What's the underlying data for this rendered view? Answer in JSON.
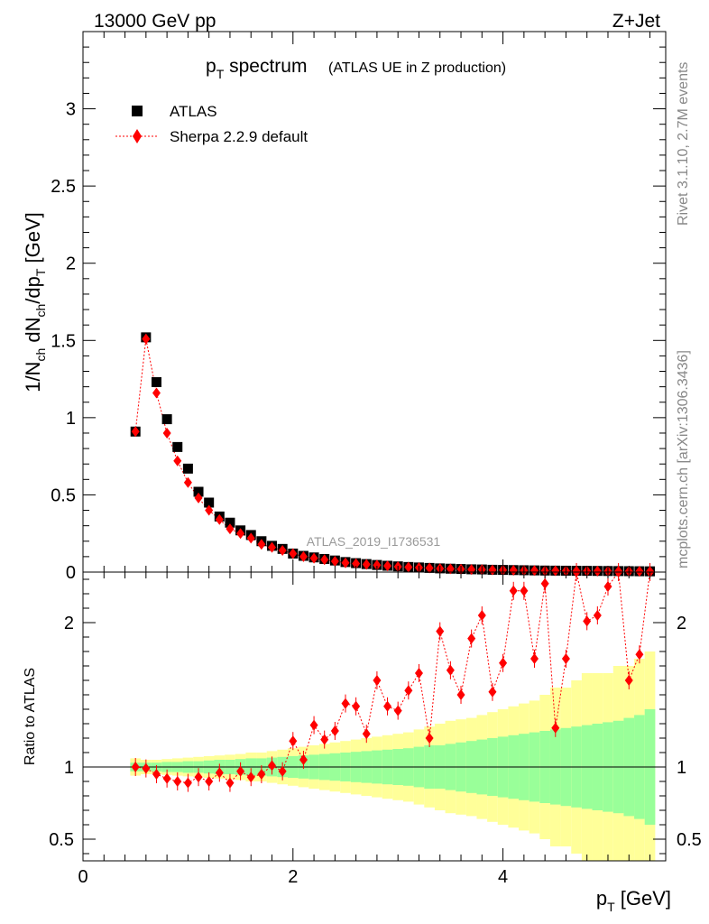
{
  "header": {
    "energy_label": "13000 GeV pp",
    "process_label": "Z+Jet"
  },
  "side_labels": {
    "rivet": "Rivet 3.1.10,  2.7M events",
    "mcplots": "mcplots.cern.ch [arXiv:1306.3436]"
  },
  "colors": {
    "data_marker": "#000000",
    "mc_line": "#ff0000",
    "band_inner": "#99ff99",
    "band_outer": "#ffff99"
  },
  "chart_data": [
    {
      "type": "scatter",
      "panel": "main",
      "title_main": "p",
      "title_sub": "T",
      "title_word": " spectrum",
      "title_suffix": "(ATLAS UE in Z production)",
      "watermark": "ATLAS_2019_I1736531",
      "xlabel": "p",
      "xlabel_sub": "T",
      "xlabel_unit": " [GeV]",
      "ylabel": "1/N_ch dN_ch/dp_T [GeV]",
      "xlim": [
        0,
        5.55
      ],
      "ylim": [
        0,
        3.5
      ],
      "grid": false,
      "legend_position": "top-left",
      "yticks": [
        {
          "v": 0,
          "label": "0"
        },
        {
          "v": 0.5,
          "label": "0.5"
        },
        {
          "v": 1,
          "label": "1"
        },
        {
          "v": 1.5,
          "label": "1.5"
        },
        {
          "v": 2,
          "label": "2"
        },
        {
          "v": 2.5,
          "label": "2.5"
        },
        {
          "v": 3,
          "label": "3"
        }
      ],
      "series": [
        {
          "name": "ATLAS",
          "marker": "square",
          "x": [
            0.5,
            0.6,
            0.7,
            0.8,
            0.9,
            1.0,
            1.1,
            1.2,
            1.3,
            1.4,
            1.5,
            1.6,
            1.7,
            1.8,
            1.9,
            2.0,
            2.1,
            2.2,
            2.3,
            2.4,
            2.5,
            2.6,
            2.7,
            2.8,
            2.9,
            3.0,
            3.1,
            3.2,
            3.3,
            3.4,
            3.5,
            3.6,
            3.7,
            3.8,
            3.9,
            4.0,
            4.1,
            4.2,
            4.3,
            4.4,
            4.5,
            4.6,
            4.7,
            4.8,
            4.9,
            5.0,
            5.1,
            5.2,
            5.3,
            5.4
          ],
          "y": [
            0.91,
            1.52,
            1.23,
            0.99,
            0.81,
            0.67,
            0.52,
            0.45,
            0.36,
            0.32,
            0.27,
            0.24,
            0.2,
            0.17,
            0.15,
            0.12,
            0.105,
            0.095,
            0.085,
            0.075,
            0.065,
            0.058,
            0.052,
            0.046,
            0.041,
            0.037,
            0.033,
            0.03,
            0.027,
            0.024,
            0.022,
            0.02,
            0.018,
            0.017,
            0.015,
            0.014,
            0.013,
            0.012,
            0.011,
            0.01,
            0.0095,
            0.009,
            0.0085,
            0.008,
            0.0075,
            0.007,
            0.0065,
            0.006,
            0.0055,
            0.005
          ]
        },
        {
          "name": "Sherpa 2.2.9 default",
          "marker": "diamond",
          "line": "dotted",
          "x": [
            0.5,
            0.6,
            0.7,
            0.8,
            0.9,
            1.0,
            1.1,
            1.2,
            1.3,
            1.4,
            1.5,
            1.6,
            1.7,
            1.8,
            1.9,
            2.0,
            2.1,
            2.2,
            2.3,
            2.4,
            2.5,
            2.6,
            2.7,
            2.8,
            2.9,
            3.0,
            3.1,
            3.2,
            3.3,
            3.4,
            3.5,
            3.6,
            3.7,
            3.8,
            3.9,
            4.0,
            4.1,
            4.2,
            4.3,
            4.4,
            4.5,
            4.6,
            4.7,
            4.8,
            4.9,
            5.0,
            5.1,
            5.2,
            5.3,
            5.4
          ],
          "y": [
            0.91,
            1.51,
            1.16,
            0.9,
            0.72,
            0.58,
            0.48,
            0.4,
            0.34,
            0.28,
            0.25,
            0.22,
            0.18,
            0.16,
            0.14,
            0.12,
            0.1,
            0.09,
            0.08,
            0.07,
            0.06,
            0.055,
            0.05,
            0.045,
            0.04,
            0.035,
            0.032,
            0.029,
            0.026,
            0.023,
            0.021,
            0.019,
            0.017,
            0.016,
            0.014,
            0.013,
            0.012,
            0.011,
            0.01,
            0.009,
            0.0085,
            0.008,
            0.0075,
            0.007,
            0.0065,
            0.006,
            0.0055,
            0.005,
            0.0048,
            0.0045
          ]
        }
      ]
    },
    {
      "type": "scatter",
      "panel": "ratio",
      "ylabel": "Ratio to ATLAS",
      "xlim": [
        0,
        5.55
      ],
      "ylim": [
        0.35,
        2.35
      ],
      "xticks": [
        {
          "v": 0,
          "label": "0"
        },
        {
          "v": 2,
          "label": "2"
        },
        {
          "v": 4,
          "label": "4"
        }
      ],
      "yticks": [
        {
          "v": 0.5,
          "label": "0.5"
        },
        {
          "v": 1,
          "label": "1"
        },
        {
          "v": 2,
          "label": "2"
        }
      ],
      "reference_line": 1,
      "bin_edges": [
        0.45,
        0.55,
        0.65,
        0.75,
        0.85,
        0.95,
        1.05,
        1.15,
        1.25,
        1.35,
        1.45,
        1.55,
        1.65,
        1.75,
        1.85,
        1.95,
        2.05,
        2.15,
        2.25,
        2.35,
        2.45,
        2.55,
        2.65,
        2.75,
        2.85,
        2.95,
        3.05,
        3.15,
        3.25,
        3.35,
        3.45,
        3.55,
        3.65,
        3.75,
        3.85,
        3.95,
        4.05,
        4.15,
        4.25,
        4.35,
        4.45,
        4.55,
        4.65,
        4.75,
        4.85,
        4.95,
        5.05,
        5.15,
        5.25,
        5.35,
        5.45
      ],
      "band_inner_halfwidth": [
        0.03,
        0.03,
        0.03,
        0.035,
        0.035,
        0.04,
        0.04,
        0.045,
        0.05,
        0.05,
        0.055,
        0.06,
        0.06,
        0.065,
        0.07,
        0.075,
        0.08,
        0.085,
        0.09,
        0.095,
        0.1,
        0.105,
        0.11,
        0.115,
        0.12,
        0.125,
        0.13,
        0.14,
        0.15,
        0.15,
        0.16,
        0.17,
        0.18,
        0.19,
        0.2,
        0.21,
        0.22,
        0.23,
        0.24,
        0.25,
        0.26,
        0.27,
        0.28,
        0.29,
        0.3,
        0.31,
        0.32,
        0.34,
        0.36,
        0.4
      ],
      "band_outer_halfwidth": [
        0.06,
        0.05,
        0.05,
        0.055,
        0.06,
        0.065,
        0.07,
        0.075,
        0.08,
        0.085,
        0.09,
        0.1,
        0.1,
        0.11,
        0.12,
        0.13,
        0.14,
        0.15,
        0.16,
        0.17,
        0.18,
        0.19,
        0.2,
        0.21,
        0.22,
        0.23,
        0.24,
        0.26,
        0.28,
        0.3,
        0.32,
        0.33,
        0.34,
        0.36,
        0.38,
        0.4,
        0.42,
        0.44,
        0.46,
        0.5,
        0.55,
        0.55,
        0.6,
        0.65,
        0.65,
        0.65,
        0.7,
        0.7,
        0.75,
        0.8
      ],
      "series": [
        {
          "name": "Sherpa 2.2.9 default",
          "marker": "diamond",
          "line": "dotted",
          "x": [
            0.5,
            0.6,
            0.7,
            0.8,
            0.9,
            1.0,
            1.1,
            1.2,
            1.3,
            1.4,
            1.5,
            1.6,
            1.7,
            1.8,
            1.9,
            2.0,
            2.1,
            2.2,
            2.3,
            2.4,
            2.5,
            2.6,
            2.7,
            2.8,
            2.9,
            3.0,
            3.1,
            3.2,
            3.3,
            3.4,
            3.5,
            3.6,
            3.7,
            3.8,
            3.9,
            4.0,
            4.1,
            4.2,
            4.3,
            4.4,
            4.5,
            4.6,
            4.7,
            4.8,
            4.9,
            5.0,
            5.1,
            5.2,
            5.3,
            5.4
          ],
          "y": [
            1.0,
            0.99,
            0.95,
            0.92,
            0.9,
            0.89,
            0.93,
            0.9,
            0.96,
            0.89,
            0.97,
            0.93,
            0.95,
            1.01,
            0.97,
            1.18,
            1.05,
            1.29,
            1.19,
            1.25,
            1.44,
            1.42,
            1.23,
            1.6,
            1.42,
            1.39,
            1.53,
            1.65,
            1.2,
            1.94,
            1.67,
            1.5,
            1.89,
            2.05,
            1.52,
            1.72,
            2.22,
            2.22,
            1.75,
            2.27,
            1.27,
            1.75,
            2.35,
            2.01,
            2.05,
            2.25,
            2.35,
            1.6,
            1.78,
            2.35
          ]
        }
      ]
    }
  ]
}
